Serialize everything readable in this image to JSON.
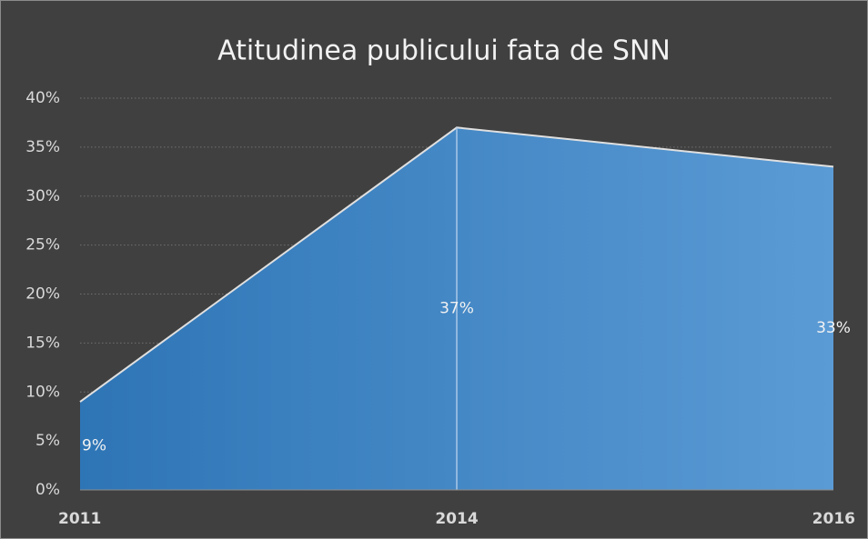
{
  "chart_data": {
    "type": "area",
    "title": "Atitudinea publicului fata de  SNN",
    "categories": [
      "2011",
      "2014",
      "2016"
    ],
    "values": [
      9,
      37,
      33
    ],
    "value_labels": [
      "9%",
      "37%",
      "33%"
    ],
    "colors": [
      "#2e75b6",
      "#5b9bd5"
    ],
    "ylim": [
      0,
      40
    ],
    "yticks": [
      {
        "value": 0,
        "label": "0%"
      },
      {
        "value": 5,
        "label": "5%"
      },
      {
        "value": 10,
        "label": "10%"
      },
      {
        "value": 15,
        "label": "15%"
      },
      {
        "value": 20,
        "label": "20%"
      },
      {
        "value": 25,
        "label": "25%"
      },
      {
        "value": 30,
        "label": "30%"
      },
      {
        "value": 35,
        "label": "35%"
      },
      {
        "value": 40,
        "label": "40%"
      }
    ],
    "grid": true
  }
}
